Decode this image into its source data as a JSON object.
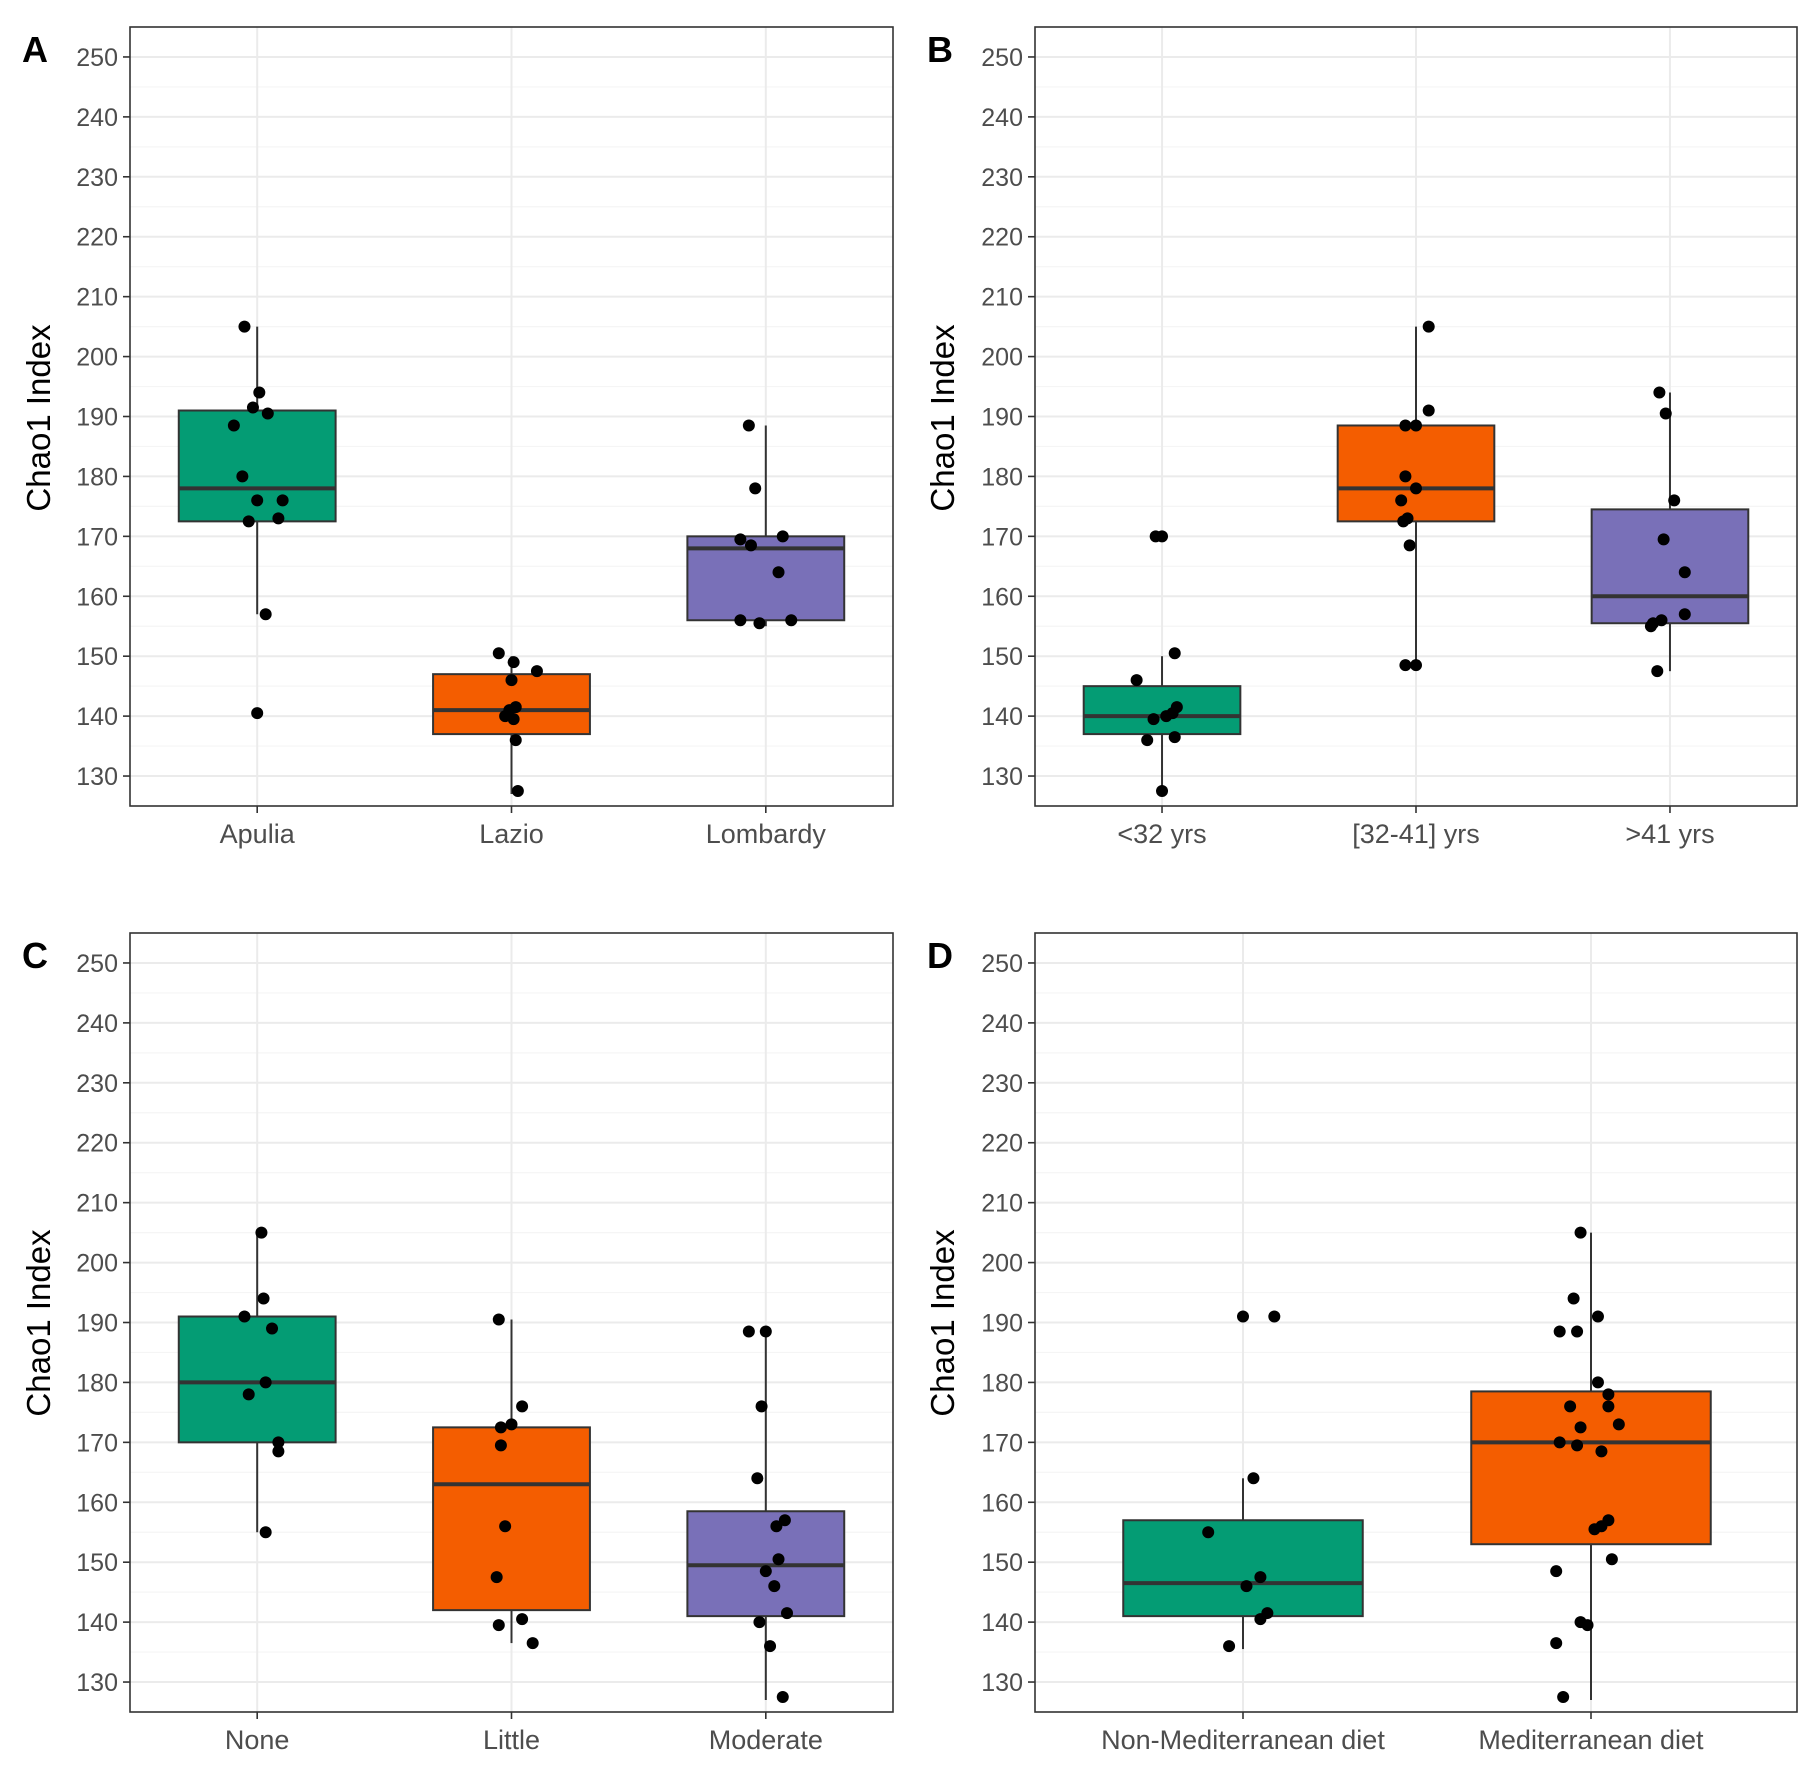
{
  "colors": {
    "green": "#049c74",
    "orange": "#f45d00",
    "purple": "#7970b8",
    "background": "#ffffff",
    "major_grid": "#ebebeb",
    "minor_grid": "#f5f5f5",
    "axis_text": "#4d4d4d"
  },
  "chart_data": [
    {
      "type": "box",
      "panel": "A",
      "xlabel": "",
      "ylabel": "Chao1 Index",
      "ylim": [
        125,
        255
      ],
      "yticks": [
        130,
        140,
        150,
        160,
        170,
        180,
        190,
        200,
        210,
        220,
        230,
        240,
        250
      ],
      "grid": true,
      "categories": [
        "Apulia",
        "Lazio",
        "Lombardy"
      ],
      "boxes": [
        {
          "q1": 172.5,
          "median": 178,
          "q3": 191,
          "whisker_low": 157,
          "whisker_high": 205,
          "color": "green",
          "points": [
            [
              205,
              -0.06
            ],
            [
              194,
              0.01
            ],
            [
              191.5,
              -0.02
            ],
            [
              190.5,
              0.05
            ],
            [
              188.5,
              -0.11
            ],
            [
              180,
              -0.07
            ],
            [
              176,
              0.0
            ],
            [
              176,
              0.12
            ],
            [
              173,
              0.1
            ],
            [
              172.5,
              -0.04
            ],
            [
              157,
              0.04
            ],
            [
              140.5,
              0.0
            ]
          ]
        },
        {
          "q1": 137,
          "median": 141,
          "q3": 147,
          "whisker_low": 127,
          "whisker_high": 150,
          "color": "orange",
          "points": [
            [
              150.5,
              -0.06
            ],
            [
              149,
              0.01
            ],
            [
              147.5,
              0.12
            ],
            [
              146,
              0.0
            ],
            [
              141.5,
              0.02
            ],
            [
              141,
              -0.01
            ],
            [
              140,
              -0.03
            ],
            [
              139.5,
              0.01
            ],
            [
              136,
              0.02
            ],
            [
              127.5,
              0.03
            ]
          ]
        },
        {
          "q1": 156,
          "median": 168,
          "q3": 170,
          "whisker_low": 155,
          "whisker_high": 188.5,
          "color": "purple",
          "points": [
            [
              188.5,
              -0.08
            ],
            [
              178,
              -0.05
            ],
            [
              170,
              0.08
            ],
            [
              169.5,
              -0.12
            ],
            [
              168.5,
              -0.07
            ],
            [
              164,
              0.06
            ],
            [
              156,
              -0.12
            ],
            [
              156,
              0.12
            ],
            [
              155.5,
              -0.03
            ]
          ]
        }
      ]
    },
    {
      "type": "box",
      "panel": "B",
      "xlabel": "",
      "ylabel": "Chao1 Index",
      "ylim": [
        125,
        255
      ],
      "yticks": [
        130,
        140,
        150,
        160,
        170,
        180,
        190,
        200,
        210,
        220,
        230,
        240,
        250
      ],
      "grid": true,
      "categories": [
        "<32 yrs",
        "[32-41] yrs",
        ">41 yrs"
      ],
      "boxes": [
        {
          "q1": 137,
          "median": 140,
          "q3": 145,
          "whisker_low": 127,
          "whisker_high": 150,
          "color": "green",
          "points": [
            [
              170,
              -0.03
            ],
            [
              170,
              0.0
            ],
            [
              150.5,
              0.06
            ],
            [
              146,
              -0.12
            ],
            [
              141.5,
              0.07
            ],
            [
              140.5,
              0.05
            ],
            [
              140,
              0.02
            ],
            [
              139.5,
              -0.04
            ],
            [
              136.5,
              0.06
            ],
            [
              136,
              -0.07
            ],
            [
              127.5,
              0.0
            ]
          ]
        },
        {
          "q1": 172.5,
          "median": 178,
          "q3": 188.5,
          "whisker_low": 148.5,
          "whisker_high": 205,
          "color": "orange",
          "points": [
            [
              205,
              0.06
            ],
            [
              191,
              0.06
            ],
            [
              188.5,
              -0.05
            ],
            [
              188.5,
              0.0
            ],
            [
              180,
              -0.05
            ],
            [
              178,
              0.0
            ],
            [
              176,
              -0.07
            ],
            [
              173,
              -0.04
            ],
            [
              172.5,
              -0.06
            ],
            [
              168.5,
              -0.03
            ],
            [
              148.5,
              -0.05
            ],
            [
              148.5,
              0.0
            ]
          ]
        },
        {
          "q1": 155.5,
          "median": 160,
          "q3": 174.5,
          "whisker_low": 147.5,
          "whisker_high": 194,
          "color": "purple",
          "points": [
            [
              194,
              -0.05
            ],
            [
              190.5,
              -0.02
            ],
            [
              176,
              0.02
            ],
            [
              169.5,
              -0.03
            ],
            [
              164,
              0.07
            ],
            [
              157,
              0.07
            ],
            [
              156,
              -0.04
            ],
            [
              155.5,
              -0.08
            ],
            [
              155,
              -0.09
            ],
            [
              147.5,
              -0.06
            ]
          ]
        }
      ]
    },
    {
      "type": "box",
      "panel": "C",
      "xlabel": "",
      "ylabel": "Chao1 Index",
      "ylim": [
        125,
        255
      ],
      "yticks": [
        130,
        140,
        150,
        160,
        170,
        180,
        190,
        200,
        210,
        220,
        230,
        240,
        250
      ],
      "grid": true,
      "categories": [
        "None",
        "Little",
        "Moderate"
      ],
      "boxes": [
        {
          "q1": 170,
          "median": 180,
          "q3": 191,
          "whisker_low": 155,
          "whisker_high": 205,
          "color": "green",
          "points": [
            [
              205,
              0.02
            ],
            [
              194,
              0.03
            ],
            [
              191,
              -0.06
            ],
            [
              189,
              0.07
            ],
            [
              180,
              0.04
            ],
            [
              178,
              -0.04
            ],
            [
              170,
              0.1
            ],
            [
              168.5,
              0.1
            ],
            [
              155,
              0.04
            ]
          ]
        },
        {
          "q1": 142,
          "median": 163,
          "q3": 172.5,
          "whisker_low": 136.5,
          "whisker_high": 190.5,
          "color": "orange",
          "points": [
            [
              190.5,
              -0.06
            ],
            [
              176,
              0.05
            ],
            [
              173,
              0.0
            ],
            [
              172.5,
              -0.05
            ],
            [
              169.5,
              -0.05
            ],
            [
              156,
              -0.03
            ],
            [
              147.5,
              -0.07
            ],
            [
              140.5,
              0.05
            ],
            [
              139.5,
              -0.06
            ],
            [
              136.5,
              0.1
            ]
          ]
        },
        {
          "q1": 141,
          "median": 149.5,
          "q3": 158.5,
          "whisker_low": 127,
          "whisker_high": 188.5,
          "color": "purple",
          "points": [
            [
              188.5,
              -0.08
            ],
            [
              188.5,
              0.0
            ],
            [
              176,
              -0.02
            ],
            [
              164,
              -0.04
            ],
            [
              157,
              0.09
            ],
            [
              156,
              0.05
            ],
            [
              150.5,
              0.06
            ],
            [
              148.5,
              0.0
            ],
            [
              146,
              0.04
            ],
            [
              141.5,
              0.1
            ],
            [
              140,
              -0.03
            ],
            [
              136,
              0.02
            ],
            [
              127.5,
              0.08
            ]
          ]
        }
      ]
    },
    {
      "type": "box",
      "panel": "D",
      "xlabel": "",
      "ylabel": "Chao1 Index",
      "ylim": [
        125,
        255
      ],
      "yticks": [
        130,
        140,
        150,
        160,
        170,
        180,
        190,
        200,
        210,
        220,
        230,
        240,
        250
      ],
      "grid": true,
      "categories": [
        "Non-Mediterranean diet",
        "Mediterranean diet"
      ],
      "boxes": [
        {
          "q1": 141,
          "median": 146.5,
          "q3": 157,
          "whisker_low": 135.5,
          "whisker_high": 164,
          "color": "green",
          "points": [
            [
              191,
              0.0
            ],
            [
              191,
              0.09
            ],
            [
              164,
              0.03
            ],
            [
              155,
              -0.1
            ],
            [
              147.5,
              0.05
            ],
            [
              146,
              0.01
            ],
            [
              141.5,
              0.07
            ],
            [
              140.5,
              0.05
            ],
            [
              136,
              -0.04
            ]
          ]
        },
        {
          "q1": 153,
          "median": 170,
          "q3": 178.5,
          "whisker_low": 127,
          "whisker_high": 205,
          "color": "orange",
          "points": [
            [
              205,
              -0.03
            ],
            [
              194,
              -0.05
            ],
            [
              191,
              0.02
            ],
            [
              188.5,
              -0.09
            ],
            [
              188.5,
              -0.04
            ],
            [
              180,
              0.02
            ],
            [
              178,
              0.05
            ],
            [
              176,
              -0.06
            ],
            [
              176,
              0.05
            ],
            [
              173,
              0.08
            ],
            [
              172.5,
              -0.03
            ],
            [
              170,
              -0.09
            ],
            [
              169.5,
              -0.04
            ],
            [
              168.5,
              0.03
            ],
            [
              157,
              0.05
            ],
            [
              156,
              0.03
            ],
            [
              155.5,
              0.01
            ],
            [
              150.5,
              0.06
            ],
            [
              148.5,
              -0.1
            ],
            [
              140,
              -0.03
            ],
            [
              139.5,
              -0.01
            ],
            [
              136.5,
              -0.1
            ],
            [
              127.5,
              -0.08
            ]
          ]
        }
      ]
    }
  ]
}
